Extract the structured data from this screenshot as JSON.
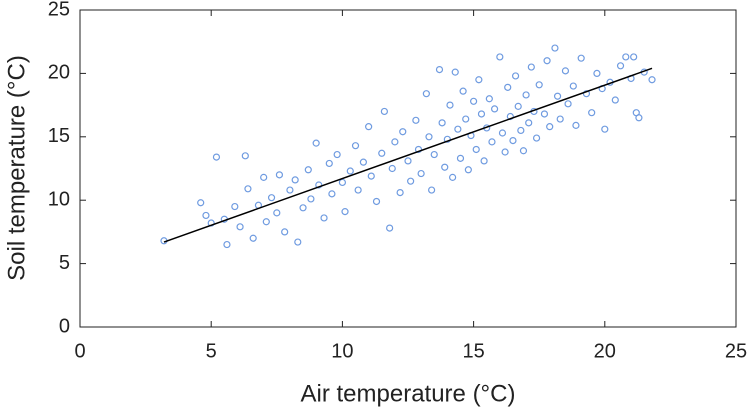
{
  "chart_data": {
    "type": "scatter",
    "x_label": "Air temperature (°C)",
    "y_label": "Soil temperature (°C)",
    "xlim": [
      0,
      25
    ],
    "ylim": [
      0,
      25
    ],
    "xticks": [
      0,
      5,
      10,
      15,
      20,
      25
    ],
    "yticks": [
      0,
      5,
      10,
      15,
      20,
      25
    ],
    "series": [
      {
        "color": "#6f9be0",
        "x": [
          3.2,
          4.6,
          4.8,
          5.0,
          5.2,
          5.5,
          5.6,
          5.9,
          6.1,
          6.3,
          6.4,
          6.6,
          6.8,
          7.0,
          7.1,
          7.3,
          7.5,
          7.6,
          7.8,
          8.0,
          8.2,
          8.3,
          8.5,
          8.7,
          8.8,
          9.0,
          9.1,
          9.3,
          9.5,
          9.6,
          9.8,
          10.0,
          10.1,
          10.3,
          10.5,
          10.6,
          10.8,
          11.0,
          11.1,
          11.3,
          11.5,
          11.6,
          11.8,
          11.9,
          12.0,
          12.2,
          12.3,
          12.5,
          12.6,
          12.8,
          12.9,
          13.0,
          13.2,
          13.3,
          13.4,
          13.5,
          13.7,
          13.8,
          13.9,
          14.0,
          14.1,
          14.2,
          14.3,
          14.4,
          14.5,
          14.6,
          14.7,
          14.8,
          14.9,
          15.0,
          15.1,
          15.2,
          15.3,
          15.4,
          15.5,
          15.6,
          15.7,
          15.8,
          16.0,
          16.1,
          16.2,
          16.3,
          16.4,
          16.5,
          16.6,
          16.7,
          16.8,
          16.9,
          17.0,
          17.1,
          17.2,
          17.3,
          17.4,
          17.5,
          17.7,
          17.8,
          17.9,
          18.1,
          18.2,
          18.3,
          18.5,
          18.6,
          18.8,
          18.9,
          19.1,
          19.3,
          19.5,
          19.7,
          19.9,
          20.0,
          20.2,
          20.4,
          20.6,
          20.8,
          21.0,
          21.1,
          21.2,
          21.3,
          21.5,
          21.8
        ],
        "y": [
          6.8,
          9.8,
          8.8,
          8.2,
          13.4,
          8.5,
          6.5,
          9.5,
          7.9,
          13.5,
          10.9,
          7.0,
          9.6,
          11.8,
          8.3,
          10.2,
          9.0,
          12.0,
          7.5,
          10.8,
          11.6,
          6.7,
          9.4,
          12.4,
          10.1,
          14.5,
          11.2,
          8.6,
          12.9,
          10.5,
          13.6,
          11.4,
          9.1,
          12.3,
          14.3,
          10.8,
          13.0,
          15.8,
          11.9,
          9.9,
          13.7,
          17.0,
          7.8,
          12.5,
          14.6,
          10.6,
          15.4,
          13.1,
          11.5,
          16.3,
          14.0,
          12.1,
          18.4,
          15.0,
          10.8,
          13.6,
          20.3,
          16.1,
          12.6,
          14.8,
          17.5,
          11.8,
          20.1,
          15.6,
          13.3,
          18.6,
          16.4,
          12.4,
          15.1,
          17.8,
          14.0,
          19.5,
          16.8,
          13.1,
          15.7,
          18.0,
          14.6,
          17.2,
          21.3,
          15.3,
          13.8,
          18.9,
          16.6,
          14.7,
          19.8,
          17.4,
          15.5,
          13.9,
          18.3,
          16.1,
          20.5,
          17.0,
          14.9,
          19.1,
          16.8,
          21.0,
          15.8,
          22.0,
          18.2,
          16.4,
          20.2,
          17.6,
          19.0,
          15.9,
          21.2,
          18.4,
          16.9,
          20.0,
          18.8,
          15.6,
          19.3,
          17.9,
          20.6,
          21.3,
          19.6,
          21.3,
          16.9,
          16.5,
          20.1,
          19.5
        ]
      }
    ],
    "fit": {
      "color": "#000000",
      "x": [
        3.2,
        21.8
      ],
      "y": [
        6.7,
        20.4
      ]
    }
  }
}
